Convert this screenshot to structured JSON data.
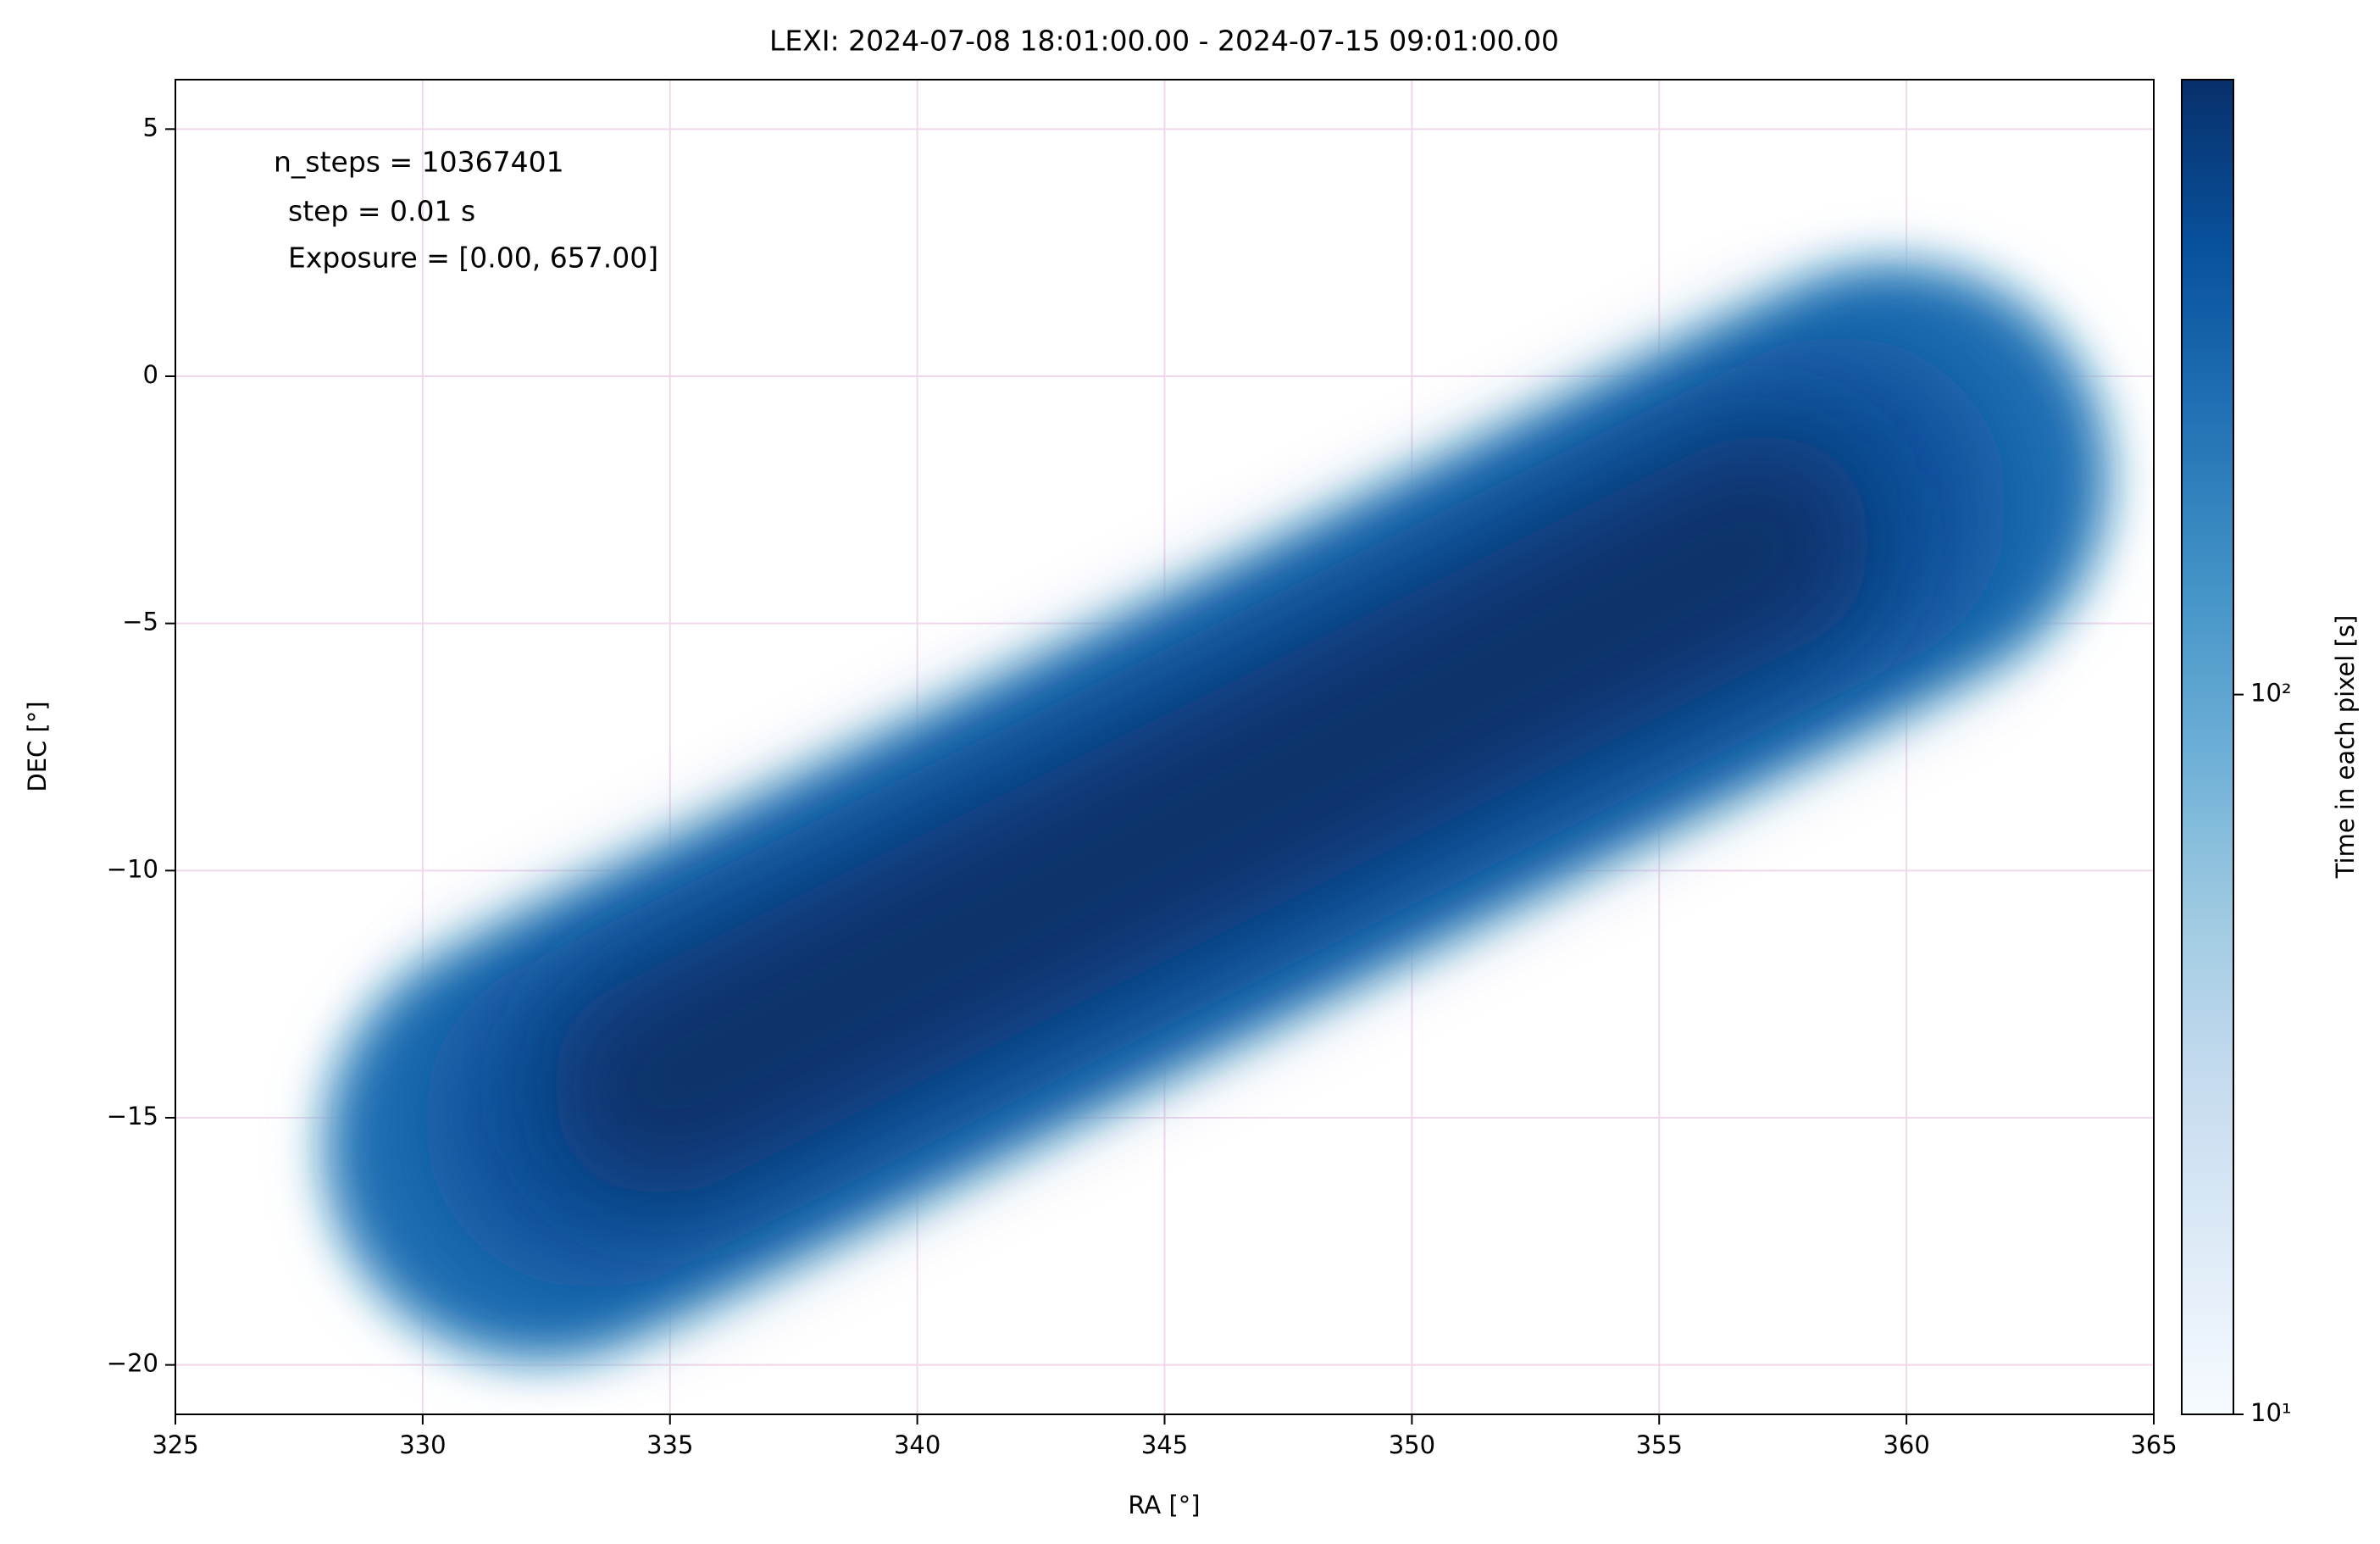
{
  "chart_data": {
    "type": "heatmap",
    "title": "LEXI: 2024-07-08 18:01:00.00 - 2024-07-15 09:01:00.00",
    "xlabel": "RA [°]",
    "ylabel": "DEC [°]",
    "annotations": [
      "n_steps = 10367401",
      "step = 0.01 s",
      "Exposure = [0.00, 657.00]"
    ],
    "xlim": [
      325,
      365
    ],
    "xticks": [
      325,
      330,
      335,
      340,
      345,
      350,
      355,
      360,
      365
    ],
    "ylim": [
      -21,
      6
    ],
    "yticks": [
      {
        "value": -20,
        "label": "−20"
      },
      {
        "value": -15,
        "label": "−15"
      },
      {
        "value": -10,
        "label": "−10"
      },
      {
        "value": -5,
        "label": "−5"
      },
      0,
      5
    ],
    "grid": true,
    "grid_color": "#f0d8ec",
    "colormap": "Blues",
    "colorbar": {
      "label": "Time in each pixel [s]",
      "scale": "log",
      "clim": [
        10,
        715
      ],
      "ticks": [
        {
          "value": 10,
          "label": "10¹"
        },
        {
          "value": 100,
          "label": "10²"
        }
      ]
    }
  }
}
